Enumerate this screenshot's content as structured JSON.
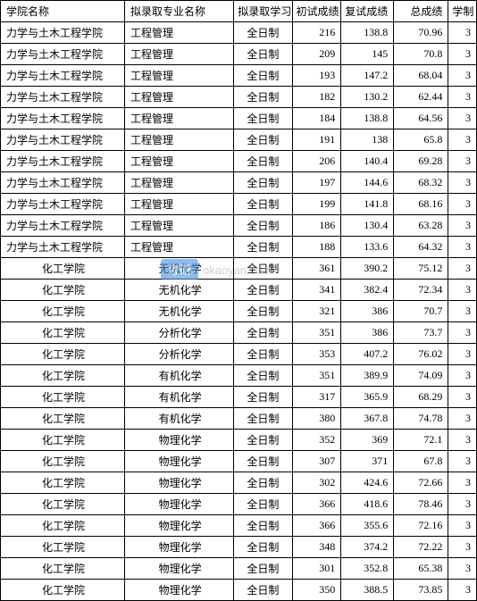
{
  "table": {
    "headers": {
      "school": "学院名称",
      "major": "拟录取专业名称",
      "mode": "拟录取学习方式",
      "score1": "初试成绩",
      "score2": "复试成绩",
      "total": "总成绩",
      "years": "学制"
    },
    "rows": [
      {
        "school": "力学与土木工程学院",
        "major": "工程管理",
        "mode": "全日制",
        "score1": "216",
        "score2": "138.8",
        "total": "70.96",
        "years": "3",
        "center": false
      },
      {
        "school": "力学与土木工程学院",
        "major": "工程管理",
        "mode": "全日制",
        "score1": "209",
        "score2": "145",
        "total": "70.8",
        "years": "3",
        "center": false
      },
      {
        "school": "力学与土木工程学院",
        "major": "工程管理",
        "mode": "全日制",
        "score1": "193",
        "score2": "147.2",
        "total": "68.04",
        "years": "3",
        "center": false
      },
      {
        "school": "力学与土木工程学院",
        "major": "工程管理",
        "mode": "全日制",
        "score1": "182",
        "score2": "130.2",
        "total": "62.44",
        "years": "3",
        "center": false
      },
      {
        "school": "力学与土木工程学院",
        "major": "工程管理",
        "mode": "全日制",
        "score1": "184",
        "score2": "138.8",
        "total": "64.56",
        "years": "3",
        "center": false
      },
      {
        "school": "力学与土木工程学院",
        "major": "工程管理",
        "mode": "全日制",
        "score1": "191",
        "score2": "138",
        "total": "65.8",
        "years": "3",
        "center": false
      },
      {
        "school": "力学与土木工程学院",
        "major": "工程管理",
        "mode": "全日制",
        "score1": "206",
        "score2": "140.4",
        "total": "69.28",
        "years": "3",
        "center": false
      },
      {
        "school": "力学与土木工程学院",
        "major": "工程管理",
        "mode": "全日制",
        "score1": "197",
        "score2": "144.6",
        "total": "68.32",
        "years": "3",
        "center": false
      },
      {
        "school": "力学与土木工程学院",
        "major": "工程管理",
        "mode": "全日制",
        "score1": "199",
        "score2": "141.8",
        "total": "68.16",
        "years": "3",
        "center": false
      },
      {
        "school": "力学与土木工程学院",
        "major": "工程管理",
        "mode": "全日制",
        "score1": "186",
        "score2": "130.4",
        "total": "63.28",
        "years": "3",
        "center": false
      },
      {
        "school": "力学与土木工程学院",
        "major": "工程管理",
        "mode": "全日制",
        "score1": "188",
        "score2": "133.6",
        "total": "64.32",
        "years": "3",
        "center": false
      },
      {
        "school": "化工学院",
        "major": "无机化学",
        "mode": "全日制",
        "score1": "361",
        "score2": "390.2",
        "total": "75.12",
        "years": "3",
        "center": true
      },
      {
        "school": "化工学院",
        "major": "无机化学",
        "mode": "全日制",
        "score1": "341",
        "score2": "382.4",
        "total": "72.34",
        "years": "3",
        "center": true
      },
      {
        "school": "化工学院",
        "major": "无机化学",
        "mode": "全日制",
        "score1": "321",
        "score2": "386",
        "total": "70.7",
        "years": "3",
        "center": true
      },
      {
        "school": "化工学院",
        "major": "分析化学",
        "mode": "全日制",
        "score1": "351",
        "score2": "386",
        "total": "73.7",
        "years": "3",
        "center": true
      },
      {
        "school": "化工学院",
        "major": "分析化学",
        "mode": "全日制",
        "score1": "353",
        "score2": "407.2",
        "total": "76.02",
        "years": "3",
        "center": true
      },
      {
        "school": "化工学院",
        "major": "有机化学",
        "mode": "全日制",
        "score1": "351",
        "score2": "389.9",
        "total": "74.09",
        "years": "3",
        "center": true
      },
      {
        "school": "化工学院",
        "major": "有机化学",
        "mode": "全日制",
        "score1": "317",
        "score2": "365.9",
        "total": "68.29",
        "years": "3",
        "center": true
      },
      {
        "school": "化工学院",
        "major": "有机化学",
        "mode": "全日制",
        "score1": "380",
        "score2": "367.8",
        "total": "74.78",
        "years": "3",
        "center": true
      },
      {
        "school": "化工学院",
        "major": "物理化学",
        "mode": "全日制",
        "score1": "352",
        "score2": "369",
        "total": "72.1",
        "years": "3",
        "center": true
      },
      {
        "school": "化工学院",
        "major": "物理化学",
        "mode": "全日制",
        "score1": "307",
        "score2": "371",
        "total": "67.8",
        "years": "3",
        "center": true
      },
      {
        "school": "化工学院",
        "major": "物理化学",
        "mode": "全日制",
        "score1": "302",
        "score2": "424.6",
        "total": "72.66",
        "years": "3",
        "center": true
      },
      {
        "school": "化工学院",
        "major": "物理化学",
        "mode": "全日制",
        "score1": "366",
        "score2": "418.6",
        "total": "78.46",
        "years": "3",
        "center": true
      },
      {
        "school": "化工学院",
        "major": "物理化学",
        "mode": "全日制",
        "score1": "366",
        "score2": "355.6",
        "total": "72.16",
        "years": "3",
        "center": true
      },
      {
        "school": "化工学院",
        "major": "物理化学",
        "mode": "全日制",
        "score1": "348",
        "score2": "374.2",
        "total": "72.22",
        "years": "3",
        "center": true
      },
      {
        "school": "化工学院",
        "major": "物理化学",
        "mode": "全日制",
        "score1": "301",
        "score2": "352.8",
        "total": "65.38",
        "years": "3",
        "center": true
      },
      {
        "school": "化工学院",
        "major": "物理化学",
        "mode": "全日制",
        "score1": "350",
        "score2": "388.5",
        "total": "73.85",
        "years": "3",
        "center": true
      }
    ]
  },
  "watermark": {
    "badge": "考研",
    "text": "okaoyan.com"
  }
}
